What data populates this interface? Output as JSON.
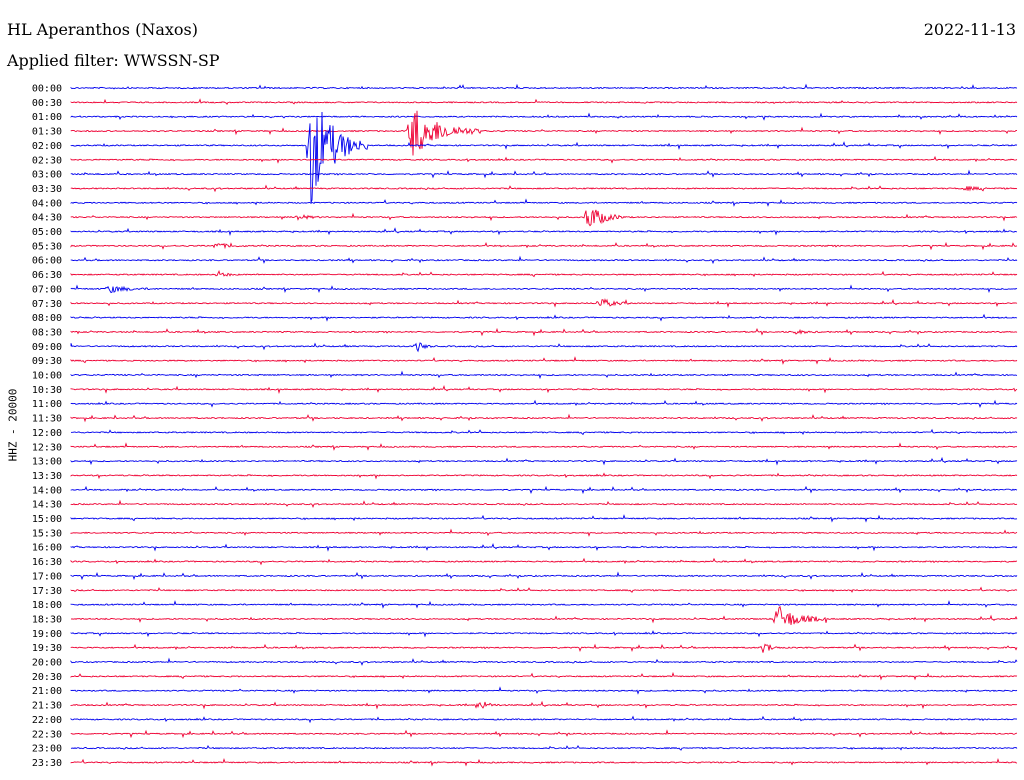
{
  "header": {
    "station": "HL Aperanthos (Naxos)",
    "date": "2022-11-13",
    "filter": "Applied filter: WWSSN-SP"
  },
  "channel_label": "HHZ - 20000",
  "colors": {
    "a": "#0000ee",
    "b": "#ee0033"
  },
  "chart_data": {
    "type": "line",
    "description": "24-hour helicorder seismogram, 48 half-hour traces alternating blue/red",
    "rows": [
      "00:00",
      "00:30",
      "01:00",
      "01:30",
      "02:00",
      "02:30",
      "03:00",
      "03:30",
      "04:00",
      "04:30",
      "05:00",
      "05:30",
      "06:00",
      "06:30",
      "07:00",
      "07:30",
      "08:00",
      "08:30",
      "09:00",
      "09:30",
      "10:00",
      "10:30",
      "11:00",
      "11:30",
      "12:00",
      "12:30",
      "13:00",
      "13:30",
      "14:00",
      "14:30",
      "15:00",
      "15:30",
      "16:00",
      "16:30",
      "17:00",
      "17:30",
      "18:00",
      "18:30",
      "19:00",
      "19:30",
      "20:00",
      "20:30",
      "21:00",
      "21:30",
      "22:00",
      "22:30",
      "23:00",
      "23:30"
    ],
    "trace_minutes": 30,
    "events": [
      {
        "row": "02:00",
        "minute": 7.6,
        "duration": 1.8,
        "amplitude": 60
      },
      {
        "row": "01:30",
        "minute": 10.8,
        "duration": 2.2,
        "amplitude": 28
      },
      {
        "row": "04:30",
        "minute": 16.4,
        "duration": 1.2,
        "amplitude": 14
      },
      {
        "row": "04:30",
        "minute": 7.2,
        "duration": 0.8,
        "amplitude": 3
      },
      {
        "row": "05:30",
        "minute": 4.6,
        "duration": 1.0,
        "amplitude": 3
      },
      {
        "row": "06:30",
        "minute": 4.7,
        "duration": 0.6,
        "amplitude": 3
      },
      {
        "row": "07:00",
        "minute": 1.2,
        "duration": 1.4,
        "amplitude": 4
      },
      {
        "row": "07:30",
        "minute": 16.8,
        "duration": 1.0,
        "amplitude": 5
      },
      {
        "row": "09:00",
        "minute": 11.0,
        "duration": 0.5,
        "amplitude": 5
      },
      {
        "row": "18:30",
        "minute": 22.4,
        "duration": 1.6,
        "amplitude": 14
      },
      {
        "row": "19:30",
        "minute": 22.0,
        "duration": 0.5,
        "amplitude": 7
      },
      {
        "row": "21:30",
        "minute": 13.0,
        "duration": 0.6,
        "amplitude": 5
      },
      {
        "row": "03:30",
        "minute": 28.4,
        "duration": 1.0,
        "amplitude": 2
      },
      {
        "row": "08:30",
        "minute": 23.0,
        "duration": 0.8,
        "amplitude": 2
      }
    ]
  }
}
